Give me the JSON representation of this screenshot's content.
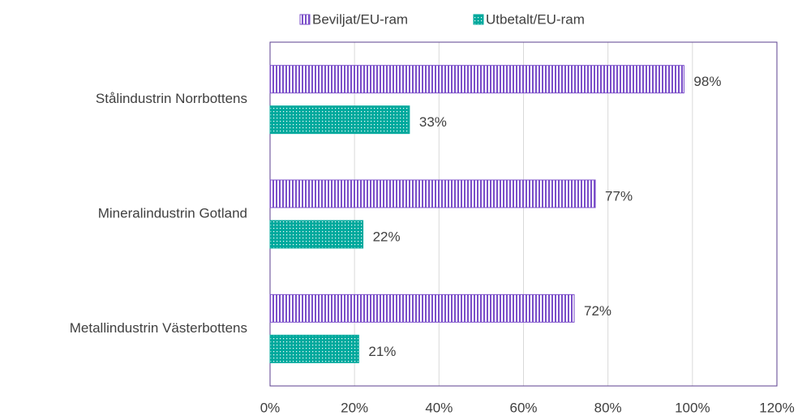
{
  "chart_data": {
    "type": "hbar",
    "categories": [
      "Stålindustrin Norrbottens",
      "Mineralindustrin Gotland",
      "Metallindustrin Västerbottens"
    ],
    "series": [
      {
        "name": "Beviljat/EU-ram",
        "color": "#7b4fc9",
        "pattern": "vertical-stripes",
        "values": [
          98,
          77,
          72
        ],
        "value_labels": [
          "98%",
          "77%",
          "72%"
        ]
      },
      {
        "name": "Utbetalt/EU-ram",
        "color": "#00a99d",
        "pattern": "dots",
        "values": [
          33,
          22,
          21
        ],
        "value_labels": [
          "33%",
          "22%",
          "21%"
        ]
      }
    ],
    "xlim": [
      0,
      120
    ],
    "xticks": [
      {
        "value": 0,
        "label": "0%"
      },
      {
        "value": 20,
        "label": "20%"
      },
      {
        "value": 40,
        "label": "40%"
      },
      {
        "value": 60,
        "label": "60%"
      },
      {
        "value": 80,
        "label": "80%"
      },
      {
        "value": 100,
        "label": "100%"
      },
      {
        "value": 120,
        "label": "120%"
      }
    ],
    "grid": true,
    "legend": "top"
  }
}
